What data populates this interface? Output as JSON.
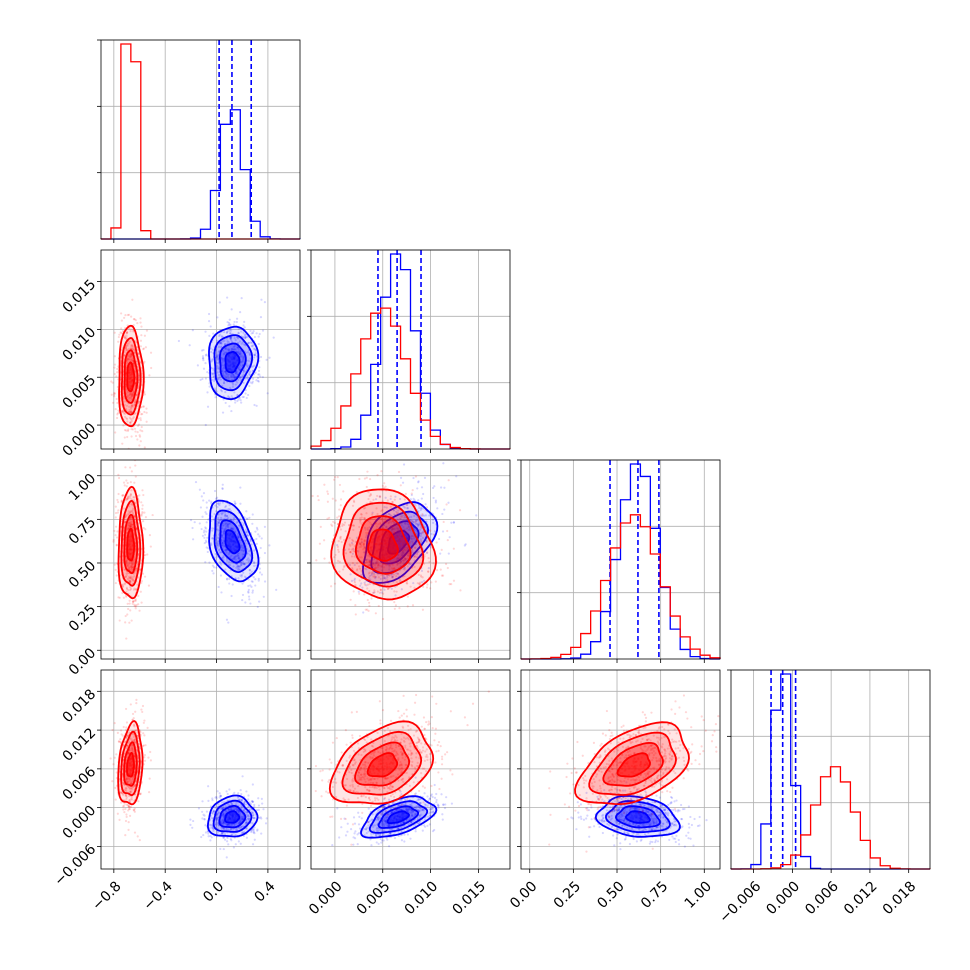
{
  "chart_data": {
    "type": "corner",
    "grid": true,
    "colors": {
      "series_a": "#0000ff",
      "series_b": "#ff0000"
    },
    "series": [
      {
        "color": "#0000ff",
        "means": [
          0.12,
          0.0066,
          0.62,
          -0.0015
        ],
        "sds": [
          0.09,
          0.0018,
          0.11,
          0.0015
        ],
        "quantiles": [
          [
            0.02,
            0.12,
            0.27
          ],
          [
            0.0045,
            0.0065,
            0.009
          ],
          [
            0.46,
            0.62,
            0.74
          ],
          [
            -0.0033,
            -0.0015,
            0.0005
          ]
        ]
      },
      {
        "color": "#ff0000",
        "means": [
          -0.67,
          0.005,
          0.6,
          0.0065
        ],
        "sds": [
          0.045,
          0.0025,
          0.15,
          0.003
        ],
        "quantiles": null
      }
    ],
    "parameters": [
      {
        "range": [
          -0.9,
          0.65
        ],
        "ticks": [
          -0.8,
          -0.4,
          0.0,
          0.4
        ],
        "tick_labels": [
          "−0.8",
          "−0.4",
          "0.0",
          "0.4"
        ]
      },
      {
        "range": [
          -0.0025,
          0.0183
        ],
        "ticks": [
          0.0,
          0.005,
          0.01,
          0.015
        ],
        "tick_labels": [
          "0.000",
          "0.005",
          "0.010",
          "0.015"
        ]
      },
      {
        "range": [
          -0.05,
          1.09
        ],
        "ticks": [
          0.0,
          0.25,
          0.5,
          0.75,
          1.0
        ],
        "tick_labels": [
          "0.00",
          "0.25",
          "0.50",
          "0.75",
          "1.00"
        ]
      },
      {
        "range": [
          -0.0095,
          0.0213
        ],
        "ticks": [
          -0.006,
          0.0,
          0.006,
          0.012,
          0.018
        ],
        "tick_labels": [
          "−0.006",
          "0.000",
          "0.006",
          "0.012",
          "0.018"
        ]
      }
    ],
    "correlations": [
      {
        "pair": [
          0,
          1
        ],
        "series_a": 0.1,
        "series_b": 0.0
      },
      {
        "pair": [
          0,
          2
        ],
        "series_a": -0.4,
        "series_b": 0.0
      },
      {
        "pair": [
          1,
          2
        ],
        "series_a": 0.45,
        "series_b": -0.1
      },
      {
        "pair": [
          0,
          3
        ],
        "series_a": 0.1,
        "series_b": 0.2
      },
      {
        "pair": [
          1,
          3
        ],
        "series_a": 0.5,
        "series_b": 0.35
      },
      {
        "pair": [
          2,
          3
        ],
        "series_a": -0.2,
        "series_b": 0.45
      }
    ]
  }
}
